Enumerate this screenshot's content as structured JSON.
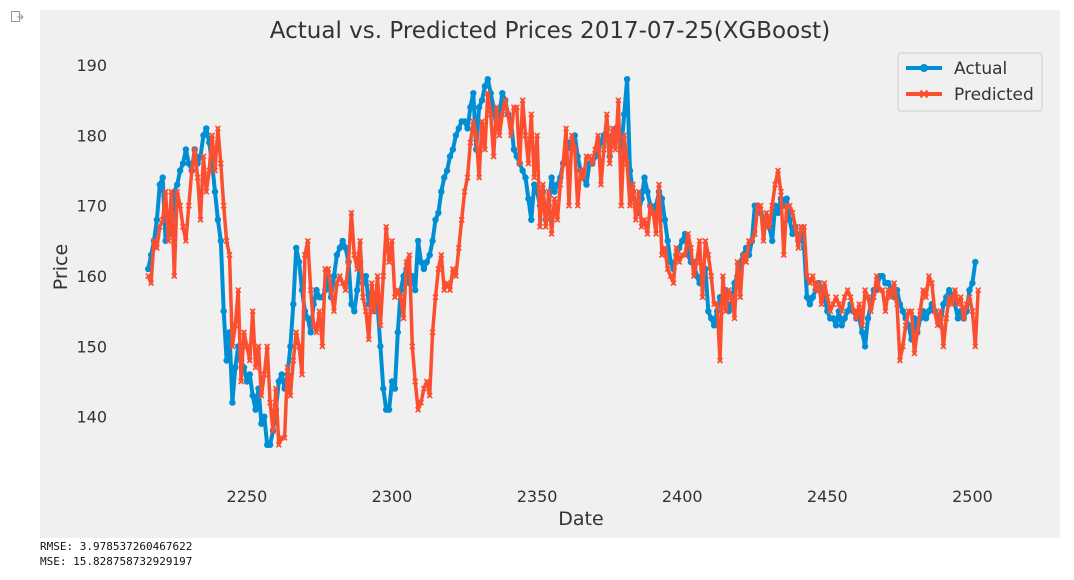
{
  "chart_data": {
    "type": "line",
    "title": "Actual vs. Predicted Prices 2017-07-25(XGBoost)",
    "xlabel": "Date",
    "ylabel": "Price",
    "xlim": [
      2208,
      2525
    ],
    "ylim": [
      131,
      193
    ],
    "xticks": [
      2250,
      2300,
      2350,
      2400,
      2450,
      2500
    ],
    "yticks": [
      140,
      150,
      160,
      170,
      180,
      190
    ],
    "grid": false,
    "legend_position": "top-right",
    "series": [
      {
        "name": "Actual",
        "color": "#008fd5",
        "marker": "circle",
        "x_start": 2216,
        "values": [
          161,
          163,
          165,
          168,
          173,
          174,
          165,
          169,
          166,
          172,
          173,
          175,
          176,
          178,
          176,
          175,
          178,
          176,
          177,
          180,
          181,
          179,
          176,
          172,
          168,
          165,
          155,
          148,
          152,
          142,
          147,
          150,
          148,
          147,
          145,
          146,
          143,
          141,
          144,
          139,
          140,
          136,
          136,
          138,
          141,
          145,
          146,
          144,
          146,
          150,
          156,
          164,
          162,
          158,
          155,
          154,
          152,
          156,
          158,
          157,
          157,
          158,
          160,
          157,
          160,
          163,
          164,
          165,
          164,
          162,
          156,
          155,
          158,
          162,
          159,
          160,
          156,
          157,
          155,
          156,
          150,
          144,
          141,
          141,
          145,
          144,
          152,
          158,
          160,
          161,
          159,
          160,
          158,
          165,
          162,
          161,
          162,
          163,
          165,
          168,
          169,
          172,
          174,
          175,
          177,
          178,
          180,
          181,
          182,
          182,
          181,
          184,
          186,
          178,
          184,
          185,
          187,
          188,
          186,
          184,
          181,
          183,
          186,
          185,
          183,
          182,
          178,
          177,
          176,
          175,
          174,
          171,
          168,
          173,
          172,
          170,
          172,
          168,
          170,
          174,
          172,
          173,
          174,
          176,
          178,
          179,
          178,
          180,
          177,
          175,
          174,
          173,
          176,
          176,
          177,
          178,
          179,
          180,
          181,
          177,
          180,
          181,
          180,
          178,
          183,
          188,
          175,
          172,
          170,
          169,
          171,
          174,
          172,
          170,
          169,
          170,
          172,
          171,
          168,
          165,
          162,
          161,
          163,
          164,
          165,
          166,
          163,
          162,
          162,
          160,
          159,
          160,
          161,
          155,
          154,
          153,
          155,
          157,
          157,
          158,
          155,
          156,
          159,
          160,
          162,
          163,
          164,
          163,
          165,
          170,
          170,
          169,
          168,
          168,
          167,
          165,
          170,
          169,
          171,
          170,
          171,
          168,
          166,
          167,
          165,
          166,
          164,
          157,
          156,
          157,
          158,
          159,
          158,
          157,
          155,
          154,
          154,
          153,
          155,
          153,
          154,
          155,
          156,
          155,
          154,
          154,
          152,
          150,
          154,
          156,
          158,
          158,
          160,
          160,
          159,
          159,
          158,
          157,
          158,
          156,
          155,
          154,
          153,
          151,
          154,
          152,
          154,
          155,
          154,
          155,
          156,
          155,
          154,
          153,
          156,
          157,
          158,
          157,
          156,
          154,
          155,
          154,
          155,
          158,
          159,
          162
        ]
      },
      {
        "name": "Predicted",
        "color": "#fc4f30",
        "marker": "x",
        "x_start": 2216,
        "values": [
          160,
          159,
          165,
          164,
          167,
          168,
          172,
          165,
          172,
          160,
          172,
          170,
          167,
          165,
          170,
          175,
          178,
          174,
          168,
          177,
          172,
          175,
          180,
          175,
          181,
          176,
          170,
          165,
          163,
          150,
          153,
          158,
          145,
          152,
          150,
          148,
          155,
          147,
          150,
          143,
          146,
          150,
          142,
          138,
          144,
          136,
          137,
          137,
          147,
          143,
          148,
          152,
          150,
          146,
          163,
          165,
          158,
          153,
          152,
          155,
          150,
          161,
          161,
          158,
          155,
          159,
          160,
          159,
          158,
          162,
          169,
          163,
          161,
          165,
          157,
          155,
          151,
          159,
          155,
          160,
          153,
          160,
          167,
          162,
          165,
          157,
          158,
          157,
          154,
          162,
          163,
          150,
          145,
          141,
          142,
          144,
          145,
          143,
          152,
          157,
          161,
          163,
          158,
          159,
          158,
          161,
          160,
          164,
          168,
          172,
          174,
          179,
          182,
          180,
          174,
          182,
          178,
          186,
          183,
          177,
          184,
          180,
          183,
          185,
          183,
          180,
          184,
          184,
          176,
          185,
          180,
          176,
          183,
          174,
          180,
          167,
          173,
          167,
          172,
          166,
          171,
          168,
          173,
          176,
          181,
          170,
          180,
          178,
          170,
          175,
          174,
          177,
          177,
          176,
          178,
          180,
          173,
          178,
          183,
          176,
          181,
          178,
          185,
          170,
          180,
          176,
          170,
          173,
          168,
          172,
          167,
          168,
          166,
          170,
          169,
          166,
          173,
          163,
          164,
          161,
          160,
          159,
          164,
          162,
          163,
          163,
          166,
          164,
          160,
          162,
          165,
          157,
          165,
          163,
          160,
          156,
          156,
          148,
          160,
          155,
          158,
          157,
          154,
          162,
          157,
          163,
          162,
          165,
          165,
          166,
          170,
          170,
          165,
          169,
          167,
          170,
          173,
          175,
          172,
          163,
          170,
          170,
          169,
          167,
          164,
          167,
          167,
          160,
          159,
          160,
          158,
          159,
          156,
          159,
          157,
          155,
          156,
          157,
          156,
          155,
          157,
          158,
          157,
          155,
          154,
          156,
          153,
          158,
          157,
          155,
          157,
          160,
          158,
          158,
          155,
          158,
          157,
          159,
          156,
          148,
          150,
          153,
          155,
          155,
          149,
          152,
          155,
          158,
          157,
          160,
          159,
          155,
          153,
          155,
          150,
          154,
          157,
          156,
          158,
          156,
          157,
          154,
          156,
          157,
          155,
          150,
          158
        ]
      }
    ]
  },
  "metrics": {
    "rmse": "RMSE: 3.978537260467622",
    "mse": "MSE: 15.828758732929197"
  }
}
